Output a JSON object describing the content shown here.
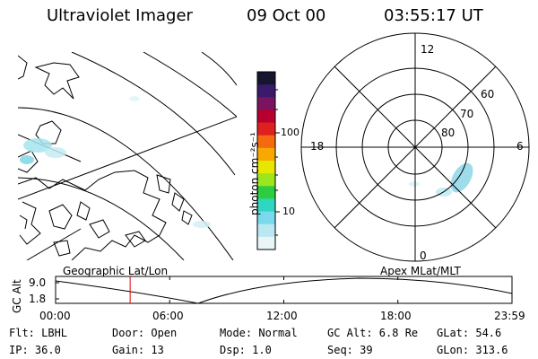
{
  "header": {
    "instrument": "Ultraviolet Imager",
    "date": "09 Oct 00",
    "time": "03:55:17 UT"
  },
  "colorbar": {
    "unit": "photon cm⁻²s⁻¹",
    "ticks": [
      "100",
      "10"
    ],
    "colors": [
      "#151530",
      "#3a1a6a",
      "#7a1460",
      "#b8002e",
      "#e02020",
      "#f56a10",
      "#f8a800",
      "#e6e600",
      "#9be61c",
      "#2ecc40",
      "#2fd6c0",
      "#7ad9ec",
      "#b9e8f2",
      "#e9f5f8"
    ]
  },
  "polar": {
    "mlt_labels": {
      "top": "12",
      "left": "18",
      "right": "6",
      "bottom": "0"
    },
    "lat_labels": [
      "60",
      "70",
      "80"
    ]
  },
  "timeline": {
    "axis_label": "GC Alt",
    "left_title": "Geographic Lat/Lon",
    "right_title": "Apex MLat/MLT",
    "y_ticks": [
      "9.0",
      "1.8"
    ],
    "x_ticks": [
      "00:00",
      "06:00",
      "12:00",
      "18:00",
      "23:59"
    ],
    "current_time_hours": 3.92
  },
  "status": {
    "flt": "Flt: LBHL",
    "ip": "IP: 36.0",
    "door": "Door: Open",
    "gain": "Gain: 13",
    "mode": "Mode: Normal",
    "dsp": "Dsp:    1.0",
    "gc_alt": "GC Alt: 6.8 Re",
    "seq": "Seq: 39",
    "glat": "GLat:  54.6",
    "glon": "GLon: 313.6"
  }
}
